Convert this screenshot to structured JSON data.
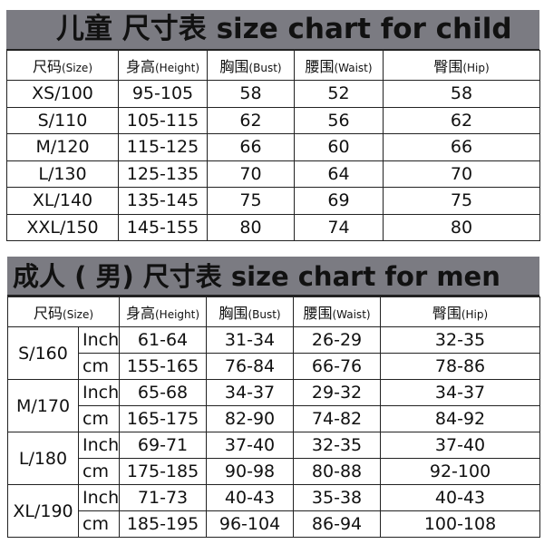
{
  "child": {
    "title": "儿童  尺寸表 size chart for child",
    "headers": [
      {
        "cn": "尺码",
        "en": "(Size)"
      },
      {
        "cn": "身高",
        "en": "(Height)"
      },
      {
        "cn": "胸围",
        "en": "(Bust)"
      },
      {
        "cn": "腰围",
        "en": "(Waist)"
      },
      {
        "cn": "臀围",
        "en": "(Hip)"
      }
    ],
    "rows": [
      [
        "XS/100",
        "95-105",
        "58",
        "52",
        "58"
      ],
      [
        "S/110",
        "105-115",
        "62",
        "56",
        "62"
      ],
      [
        "M/120",
        "115-125",
        "66",
        "60",
        "66"
      ],
      [
        "L/130",
        "125-135",
        "70",
        "64",
        "70"
      ],
      [
        "XL/140",
        "135-145",
        "75",
        "69",
        "75"
      ],
      [
        "XXL/150",
        "145-155",
        "80",
        "74",
        "80"
      ]
    ]
  },
  "men": {
    "title": "成人 ( 男) 尺寸表  size chart for men",
    "headers": [
      {
        "cn": "尺码",
        "en": "(Size)"
      },
      {
        "cn": "身高",
        "en": "(Height)"
      },
      {
        "cn": "胸围",
        "en": "(Bust)"
      },
      {
        "cn": "腰围",
        "en": "(Waist)"
      },
      {
        "cn": "臀围",
        "en": "(Hip)"
      }
    ],
    "sizes": [
      {
        "size": "S/160",
        "rows": [
          [
            "Inch",
            "61-64",
            "31-34",
            "26-29",
            "32-35"
          ],
          [
            "cm",
            "155-165",
            "76-84",
            "66-76",
            "78-86"
          ]
        ]
      },
      {
        "size": "M/170",
        "rows": [
          [
            "Inch",
            "65-68",
            "34-37",
            "29-32",
            "34-37"
          ],
          [
            "cm",
            "165-175",
            "82-90",
            "74-82",
            "84-92"
          ]
        ]
      },
      {
        "size": "L/180",
        "rows": [
          [
            "Inch",
            "69-71",
            "37-40",
            "32-35",
            "37-40"
          ],
          [
            "cm",
            "175-185",
            "90-98",
            "80-88",
            "92-100"
          ]
        ]
      },
      {
        "size": "XL/190",
        "rows": [
          [
            "Inch",
            "71-73",
            "40-43",
            "35-38",
            "40-43"
          ],
          [
            "cm",
            "185-195",
            "96-104",
            "86-94",
            "100-108"
          ]
        ]
      }
    ]
  },
  "colors": {
    "title_bar": "#7b7b82",
    "border": "#222222"
  }
}
